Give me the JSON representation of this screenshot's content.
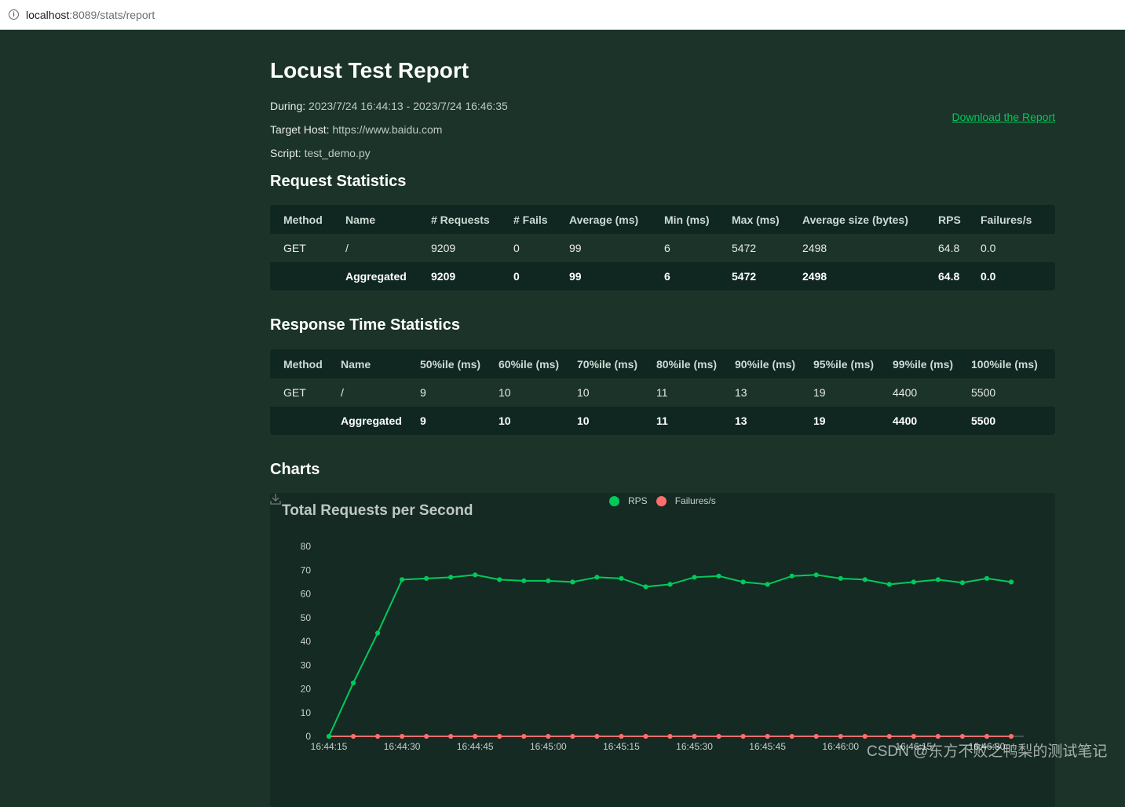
{
  "browser": {
    "url_host": "localhost",
    "url_rest": ":8089/stats/report"
  },
  "report": {
    "title": "Locust Test Report",
    "during_label": "During:",
    "during_value": "2023/7/24 16:44:13 - 2023/7/24 16:46:35",
    "host_label": "Target Host:",
    "host_value": "https://www.baidu.com",
    "script_label": "Script:",
    "script_value": "test_demo.py",
    "download_label": "Download the Report"
  },
  "request_stats": {
    "title": "Request Statistics",
    "headers": [
      "Method",
      "Name",
      "# Requests",
      "# Fails",
      "Average (ms)",
      "Min (ms)",
      "Max (ms)",
      "Average size (bytes)",
      "RPS",
      "Failures/s"
    ],
    "rows": [
      [
        "GET",
        "/",
        "9209",
        "0",
        "99",
        "6",
        "5472",
        "2498",
        "64.8",
        "0.0"
      ]
    ],
    "aggregated": [
      "",
      "Aggregated",
      "9209",
      "0",
      "99",
      "6",
      "5472",
      "2498",
      "64.8",
      "0.0"
    ]
  },
  "response_stats": {
    "title": "Response Time Statistics",
    "headers": [
      "Method",
      "Name",
      "50%ile (ms)",
      "60%ile (ms)",
      "70%ile (ms)",
      "80%ile (ms)",
      "90%ile (ms)",
      "95%ile (ms)",
      "99%ile (ms)",
      "100%ile (ms)"
    ],
    "rows": [
      [
        "GET",
        "/",
        "9",
        "10",
        "10",
        "11",
        "13",
        "19",
        "4400",
        "5500"
      ]
    ],
    "aggregated": [
      "",
      "Aggregated",
      "9",
      "10",
      "10",
      "11",
      "13",
      "19",
      "4400",
      "5500"
    ]
  },
  "charts": {
    "title": "Charts",
    "save_icon": "download-icon"
  },
  "chart_data": {
    "type": "line",
    "title": "Total Requests per Second",
    "x": [
      "16:44:15",
      "16:44:20",
      "16:44:25",
      "16:44:30",
      "16:44:35",
      "16:44:40",
      "16:44:45",
      "16:44:50",
      "16:44:55",
      "16:45:00",
      "16:45:05",
      "16:45:10",
      "16:45:15",
      "16:45:20",
      "16:45:25",
      "16:45:30",
      "16:45:35",
      "16:45:40",
      "16:45:45",
      "16:45:50",
      "16:45:55",
      "16:46:00",
      "16:46:05",
      "16:46:10",
      "16:46:15",
      "16:46:20",
      "16:46:25",
      "16:46:30",
      "16:46:35"
    ],
    "x_tick_labels": [
      "16:44:15",
      "16:44:30",
      "16:44:45",
      "16:45:00",
      "16:45:15",
      "16:45:30",
      "16:45:45",
      "16:46:00",
      "16:46:15",
      "16:46:30"
    ],
    "series": [
      {
        "name": "RPS",
        "color": "#00ca5a",
        "values": [
          0,
          22.5,
          43.5,
          66,
          66.5,
          67,
          68,
          66,
          65.5,
          65.5,
          65,
          67,
          66.5,
          63,
          64,
          67,
          67.5,
          65,
          64,
          67.5,
          68,
          66.5,
          66,
          64,
          65,
          66,
          64.7,
          66.5,
          65
        ]
      },
      {
        "name": "Failures/s",
        "color": "#ff6d6d",
        "values": [
          0,
          0,
          0,
          0,
          0,
          0,
          0,
          0,
          0,
          0,
          0,
          0,
          0,
          0,
          0,
          0,
          0,
          0,
          0,
          0,
          0,
          0,
          0,
          0,
          0,
          0,
          0,
          0,
          0
        ]
      }
    ],
    "ylim": [
      0,
      80
    ],
    "yticks": [
      0,
      10,
      20,
      30,
      40,
      50,
      60,
      70,
      80
    ],
    "legend_position": "top-center"
  },
  "watermark": "CSDN @东方不败之鸭梨的测试笔记"
}
